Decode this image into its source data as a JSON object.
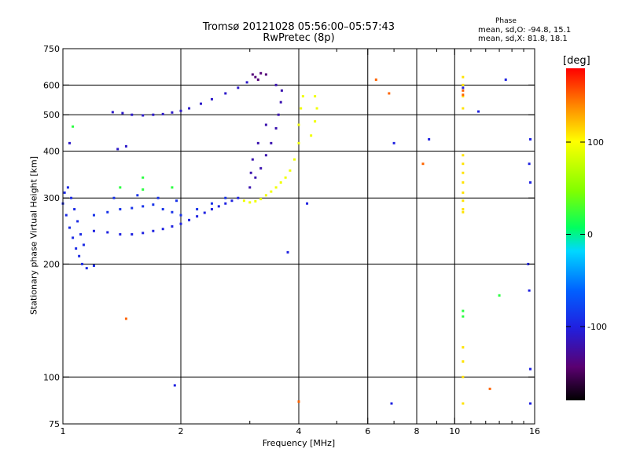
{
  "header": {
    "title_line1": "Tromsø 20121028 05:56:00–05:57:43",
    "title_line2": "RwPretec (8p)"
  },
  "phase_box": {
    "title": "Phase",
    "line_o": "mean, sd,O: -94.8, 15.1",
    "line_x": "mean, sd,X:  81.8, 18.1"
  },
  "colorbar": {
    "unit": "[deg]",
    "ticks": [
      {
        "value": 100,
        "label": "100"
      },
      {
        "value": 0,
        "label": "0"
      },
      {
        "value": -100,
        "label": "-100"
      }
    ],
    "range": [
      -180,
      180
    ]
  },
  "chart_data": {
    "type": "scatter",
    "title": "Tromsø 20121028 05:56:00–05:57:43",
    "subtitle": "RwPretec (8p)",
    "xlabel": "Frequency [MHz]",
    "ylabel": "Stationary phase Virtual Height [km]",
    "x_scale": "log",
    "y_scale": "log",
    "xlim": [
      1,
      16
    ],
    "ylim": [
      75,
      750
    ],
    "x_ticks": [
      1,
      2,
      4,
      6,
      8,
      10,
      16
    ],
    "x_tick_labels": [
      "1",
      "2",
      "4",
      "6",
      "8",
      "10",
      "16"
    ],
    "y_ticks": [
      75,
      100,
      200,
      300,
      400,
      500,
      600,
      750
    ],
    "y_tick_labels": [
      "75",
      "100",
      "200",
      "300",
      "400",
      "500",
      "600",
      "750"
    ],
    "x_gridlines": [
      2,
      4,
      6,
      8,
      10
    ],
    "y_gridlines": [
      100,
      200,
      300,
      400,
      500,
      600
    ],
    "series": [
      {
        "color_phase": -110,
        "points": [
          [
            1.34,
            508
          ],
          [
            1.42,
            505
          ],
          [
            1.5,
            500
          ],
          [
            1.6,
            498
          ],
          [
            1.7,
            500
          ],
          [
            1.8,
            502
          ],
          [
            1.9,
            507
          ],
          [
            2.0,
            512
          ],
          [
            2.1,
            520
          ],
          [
            2.25,
            535
          ],
          [
            2.4,
            550
          ],
          [
            2.6,
            570
          ],
          [
            2.8,
            590
          ],
          [
            2.95,
            610
          ],
          [
            1.45,
            412
          ],
          [
            1.38,
            405
          ],
          [
            1.04,
            420
          ]
        ]
      },
      {
        "color_phase": -95,
        "points": [
          [
            1.0,
            290
          ],
          [
            1.02,
            270
          ],
          [
            1.04,
            250
          ],
          [
            1.06,
            235
          ],
          [
            1.08,
            220
          ],
          [
            1.1,
            210
          ],
          [
            1.12,
            200
          ],
          [
            1.15,
            195
          ],
          [
            1.2,
            198
          ],
          [
            1.01,
            310
          ],
          [
            1.03,
            320
          ],
          [
            1.05,
            300
          ],
          [
            1.07,
            280
          ],
          [
            1.09,
            260
          ],
          [
            1.11,
            240
          ],
          [
            1.13,
            225
          ]
        ]
      },
      {
        "color_phase": -100,
        "points": [
          [
            1.2,
            245
          ],
          [
            1.3,
            243
          ],
          [
            1.4,
            240
          ],
          [
            1.5,
            240
          ],
          [
            1.6,
            242
          ],
          [
            1.7,
            245
          ],
          [
            1.8,
            248
          ],
          [
            1.9,
            252
          ],
          [
            2.0,
            256
          ],
          [
            2.1,
            262
          ],
          [
            2.2,
            268
          ],
          [
            2.3,
            274
          ],
          [
            2.4,
            280
          ],
          [
            2.5,
            285
          ],
          [
            2.6,
            290
          ],
          [
            2.7,
            295
          ],
          [
            2.8,
            300
          ]
        ]
      },
      {
        "color_phase": -90,
        "points": [
          [
            1.2,
            270
          ],
          [
            1.3,
            275
          ],
          [
            1.4,
            280
          ],
          [
            1.5,
            282
          ],
          [
            1.6,
            285
          ],
          [
            1.7,
            288
          ],
          [
            1.8,
            280
          ],
          [
            1.9,
            275
          ],
          [
            2.0,
            270
          ],
          [
            2.2,
            280
          ],
          [
            2.4,
            290
          ],
          [
            2.6,
            300
          ],
          [
            1.35,
            300
          ],
          [
            1.55,
            305
          ],
          [
            1.75,
            300
          ],
          [
            1.95,
            295
          ]
        ]
      },
      {
        "color_phase": -120,
        "points": [
          [
            3.0,
            320
          ],
          [
            3.1,
            340
          ],
          [
            3.2,
            360
          ],
          [
            3.3,
            390
          ],
          [
            3.4,
            420
          ],
          [
            3.5,
            460
          ],
          [
            3.55,
            500
          ],
          [
            3.6,
            540
          ],
          [
            3.62,
            580
          ],
          [
            3.5,
            600
          ],
          [
            3.3,
            470
          ],
          [
            3.15,
            420
          ],
          [
            3.05,
            380
          ],
          [
            3.02,
            350
          ]
        ]
      },
      {
        "color_phase": -140,
        "points": [
          [
            3.05,
            640
          ],
          [
            3.1,
            630
          ],
          [
            3.15,
            620
          ],
          [
            3.2,
            645
          ],
          [
            3.3,
            640
          ]
        ]
      },
      {
        "color_phase": 95,
        "points": [
          [
            2.9,
            295
          ],
          [
            3.0,
            292
          ],
          [
            3.1,
            294
          ],
          [
            3.2,
            298
          ],
          [
            3.3,
            305
          ],
          [
            3.4,
            312
          ],
          [
            3.5,
            320
          ],
          [
            3.6,
            330
          ],
          [
            3.7,
            340
          ],
          [
            3.8,
            355
          ],
          [
            3.9,
            380
          ],
          [
            4.0,
            420
          ],
          [
            4.0,
            470
          ],
          [
            4.05,
            520
          ],
          [
            4.1,
            560
          ],
          [
            4.3,
            440
          ],
          [
            4.4,
            480
          ],
          [
            4.45,
            520
          ],
          [
            4.4,
            560
          ]
        ]
      },
      {
        "color_phase": 110,
        "points": [
          [
            10.5,
            630
          ],
          [
            10.5,
            600
          ],
          [
            10.5,
            560
          ],
          [
            10.5,
            520
          ],
          [
            10.5,
            390
          ],
          [
            10.5,
            370
          ],
          [
            10.5,
            350
          ],
          [
            10.5,
            330
          ],
          [
            10.5,
            310
          ],
          [
            10.5,
            295
          ],
          [
            10.5,
            280
          ],
          [
            10.5,
            275
          ],
          [
            10.5,
            120
          ],
          [
            10.5,
            110
          ],
          [
            10.5,
            100
          ],
          [
            10.5,
            85
          ]
        ]
      },
      {
        "color_phase": -100,
        "points": [
          [
            7.0,
            420
          ],
          [
            8.6,
            430
          ],
          [
            10.5,
            590
          ],
          [
            11.5,
            510
          ],
          [
            13.5,
            620
          ],
          [
            15.6,
            430
          ],
          [
            15.5,
            370
          ],
          [
            15.6,
            330
          ],
          [
            15.4,
            200
          ],
          [
            15.5,
            170
          ],
          [
            15.6,
            105
          ],
          [
            15.6,
            85
          ],
          [
            6.9,
            85
          ],
          [
            1.93,
            95
          ],
          [
            4.2,
            290
          ],
          [
            3.75,
            215
          ]
        ]
      },
      {
        "color_phase": 150,
        "points": [
          [
            6.3,
            620
          ],
          [
            6.8,
            570
          ],
          [
            8.3,
            370
          ],
          [
            1.45,
            143
          ],
          [
            12.3,
            93
          ],
          [
            4.0,
            86
          ],
          [
            10.5,
            580
          ],
          [
            10.5,
            565
          ]
        ]
      },
      {
        "color_phase": 20,
        "points": [
          [
            1.06,
            465
          ],
          [
            1.6,
            340
          ],
          [
            13.0,
            165
          ],
          [
            1.9,
            320
          ],
          [
            1.6,
            316
          ],
          [
            10.5,
            150
          ],
          [
            10.5,
            145
          ],
          [
            1.4,
            320
          ]
        ]
      }
    ]
  }
}
